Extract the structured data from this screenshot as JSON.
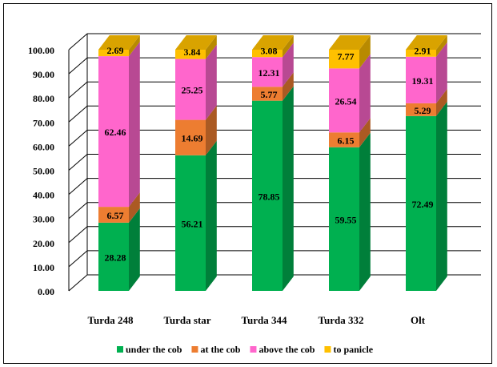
{
  "chart_data": {
    "type": "bar",
    "stacked": true,
    "three_d": true,
    "categories": [
      "Turda 248",
      "Turda star",
      "Turda 344",
      "Turda 332",
      "Olt"
    ],
    "series": [
      {
        "name": "under the cob",
        "color": "#00b050",
        "values": [
          28.28,
          56.21,
          78.85,
          59.55,
          72.49
        ]
      },
      {
        "name": "at the cob",
        "color": "#ed7d31",
        "values": [
          6.57,
          14.69,
          5.77,
          6.15,
          5.29
        ]
      },
      {
        "name": "above the cob",
        "color": "#ff66cc",
        "values": [
          62.46,
          25.25,
          12.31,
          26.54,
          19.31
        ]
      },
      {
        "name": "to panicle",
        "color": "#ffc000",
        "values": [
          2.69,
          3.84,
          3.08,
          7.77,
          2.91
        ]
      }
    ],
    "value_labels": [
      [
        "28.28",
        "56.21",
        "78.85",
        "59.55",
        "72.49"
      ],
      [
        "6.57",
        "14.69",
        "5.77",
        "6.15",
        "5.29"
      ],
      [
        "62.46",
        "25.25",
        "12.31",
        "26.54",
        "19.31"
      ],
      [
        "2.69",
        "3.84",
        "3.08",
        "7.77",
        "2.91"
      ]
    ],
    "ylim": [
      0,
      100
    ],
    "yticks": [
      "0.00",
      "10.00",
      "20.00",
      "30.00",
      "40.00",
      "50.00",
      "60.00",
      "70.00",
      "80.00",
      "90.00",
      "100.00"
    ],
    "grid": true,
    "legend_position": "bottom",
    "title": "",
    "xlabel": "",
    "ylabel": ""
  }
}
